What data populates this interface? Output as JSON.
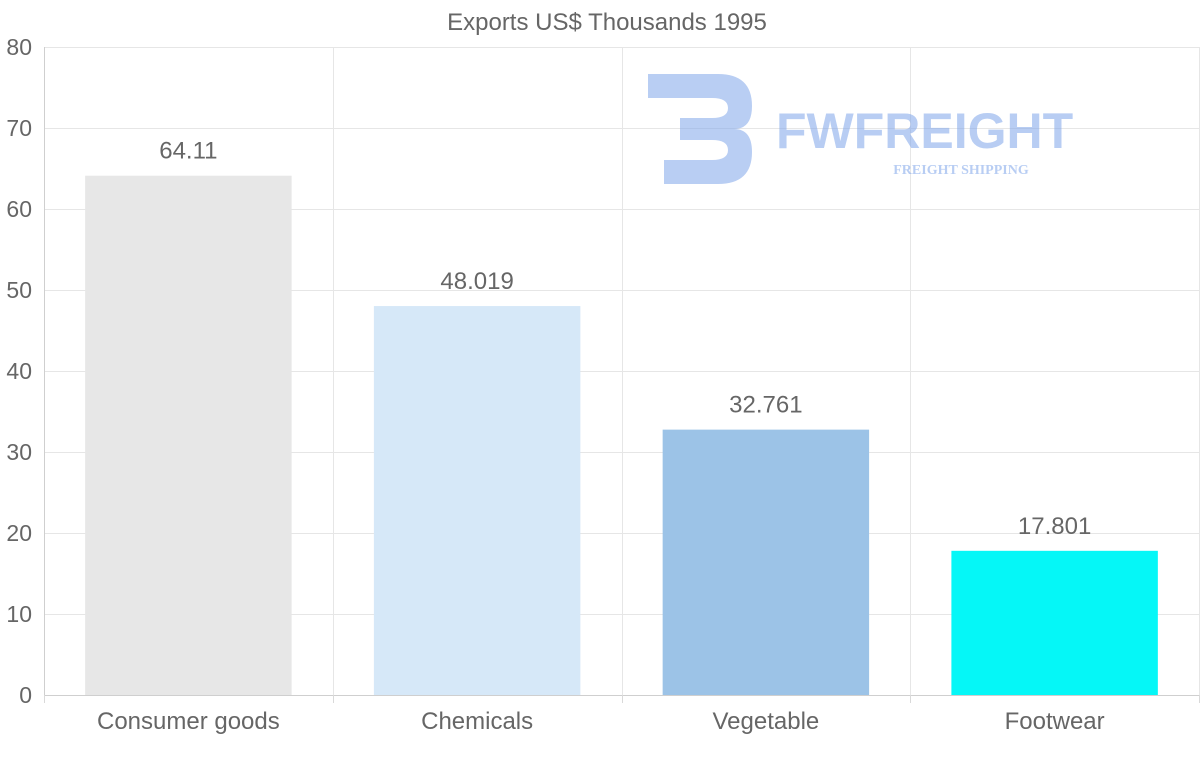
{
  "chart_data": {
    "type": "bar",
    "title": "Exports US$ Thousands 1995",
    "xlabel": "",
    "ylabel": "",
    "categories": [
      "Consumer goods",
      "Chemicals",
      "Vegetable",
      "Footwear"
    ],
    "values": [
      64.11,
      48.019,
      32.761,
      17.801
    ],
    "value_labels": [
      "64.11",
      "48.019",
      "32.761",
      "17.801"
    ],
    "colors": [
      "#e7e7e7",
      "#d6e8f8",
      "#9cc3e7",
      "#05f7f7"
    ],
    "ylim": [
      0,
      80
    ],
    "yticks": [
      0,
      10,
      20,
      30,
      40,
      50,
      60,
      70,
      80
    ],
    "grid": true,
    "legend": "none"
  },
  "watermark": {
    "brand": "FWFREIGHT",
    "tagline": "FREIGHT SHIPPING",
    "color": "#7fa6ea"
  }
}
